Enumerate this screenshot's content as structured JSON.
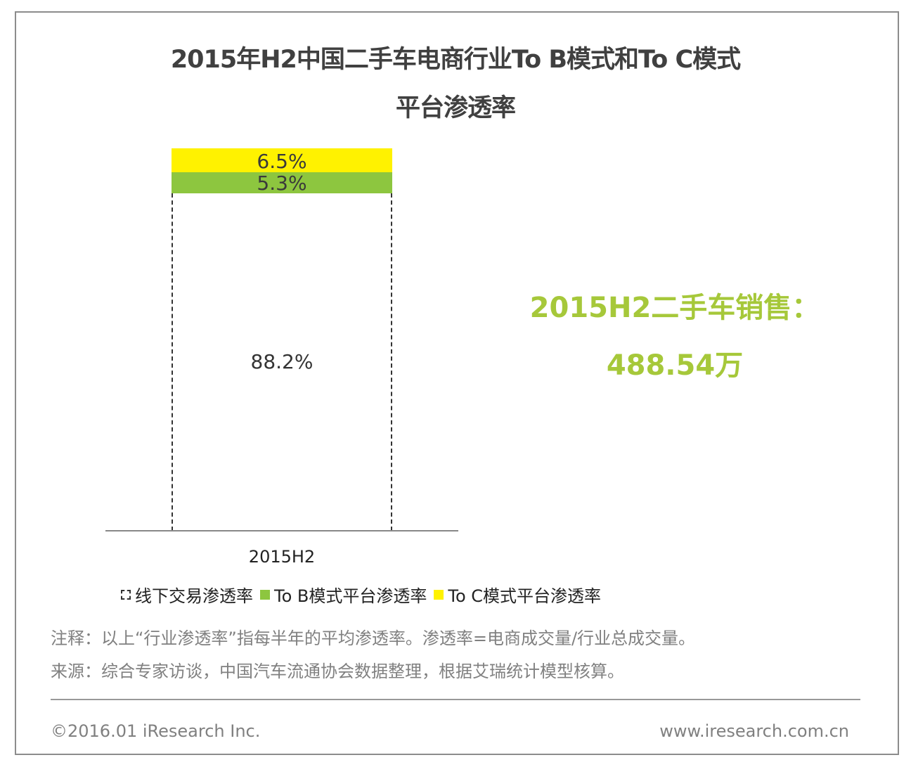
{
  "title": {
    "line1": "2015年H2中国二手车电商行业To B模式和To C模式",
    "line2": "平台渗透率"
  },
  "colors": {
    "to_c": "#FFF200",
    "to_b": "#8DC63F",
    "offline": "#FFFFFF",
    "callout": "#A6C83A",
    "title": "#404040",
    "note": "#808080"
  },
  "chart_data": {
    "type": "bar",
    "stacked": true,
    "title": "2015年H2中国二手车电商行业To B模式和To C模式平台渗透率",
    "categories": [
      "2015H2"
    ],
    "series": [
      {
        "name": "线下交易渗透率",
        "values": [
          88.2
        ],
        "label": "88.2%"
      },
      {
        "name": "To B模式平台渗透率",
        "values": [
          5.3
        ],
        "label": "5.3%"
      },
      {
        "name": "To C模式平台渗透率",
        "values": [
          6.5
        ],
        "label": "6.5%"
      }
    ],
    "xlabel": "",
    "ylabel": "",
    "ylim": [
      0,
      100
    ],
    "unit": "%",
    "grid": false,
    "legend_position": "bottom",
    "annotations": [
      "2015H2二手车销售：",
      "488.54万"
    ]
  },
  "bar": {
    "to_c_label": "6.5%",
    "to_b_label": "5.3%",
    "offline_label": "88.2%",
    "category": "2015H2"
  },
  "legend": {
    "offline": "线下交易渗透率",
    "to_b": "To B模式平台渗透率",
    "to_c": "To C模式平台渗透率"
  },
  "callout": {
    "line1": "2015H2二手车销售：",
    "line2": "488.54万"
  },
  "notes": {
    "note": "注释：以上“行业渗透率”指每半年的平均渗透率。渗透率=电商成交量/行业总成交量。",
    "source": "来源：综合专家访谈，中国汽车流通协会数据整理，根据艾瑞统计模型核算。"
  },
  "footer": {
    "copyright": "©2016.01 iResearch Inc.",
    "website": "www.iresearch.com.cn"
  }
}
